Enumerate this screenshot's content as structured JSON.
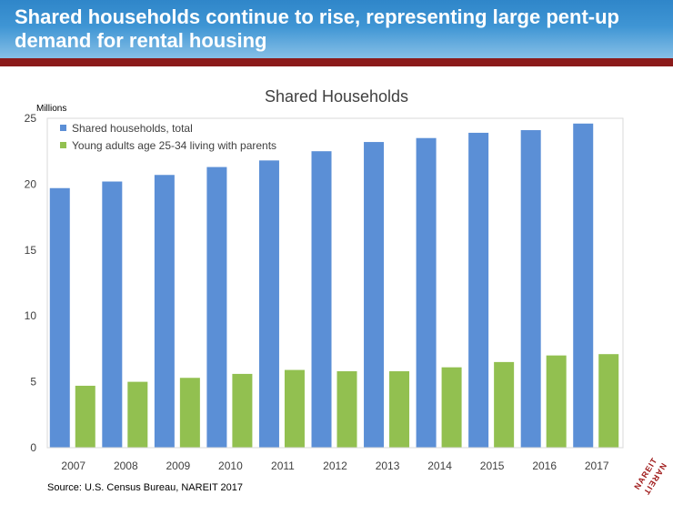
{
  "slide": {
    "title": "Shared households continue to rise, representing large pent-up demand for rental housing",
    "source": "Source: U.S. Census Bureau, NAREIT 2017",
    "logo_text": "NAREIT",
    "colors": {
      "header_top": "#2f86c9",
      "header_bottom": "#86bfe6",
      "rule": "#8b1a1a"
    }
  },
  "chart_data": {
    "type": "bar",
    "title": "Shared Households",
    "ylabel": "Millions",
    "xlabel": "",
    "ylim": [
      0,
      25
    ],
    "yticks": [
      0,
      5,
      10,
      15,
      20,
      25
    ],
    "grid": false,
    "legend_position": "top-left",
    "categories": [
      "2007",
      "2008",
      "2009",
      "2010",
      "2011",
      "2012",
      "2013",
      "2014",
      "2015",
      "2016",
      "2017"
    ],
    "series": [
      {
        "name": "Shared households, total",
        "color": "#5b8fd6",
        "values": [
          19.7,
          20.2,
          20.7,
          21.3,
          21.8,
          22.5,
          23.2,
          23.5,
          23.9,
          24.1,
          24.6
        ]
      },
      {
        "name": "Young adults age 25-34 living with parents",
        "color": "#92c050",
        "values": [
          4.7,
          5.0,
          5.3,
          5.6,
          5.9,
          5.8,
          5.8,
          6.1,
          6.5,
          7.0,
          7.1
        ]
      }
    ]
  }
}
